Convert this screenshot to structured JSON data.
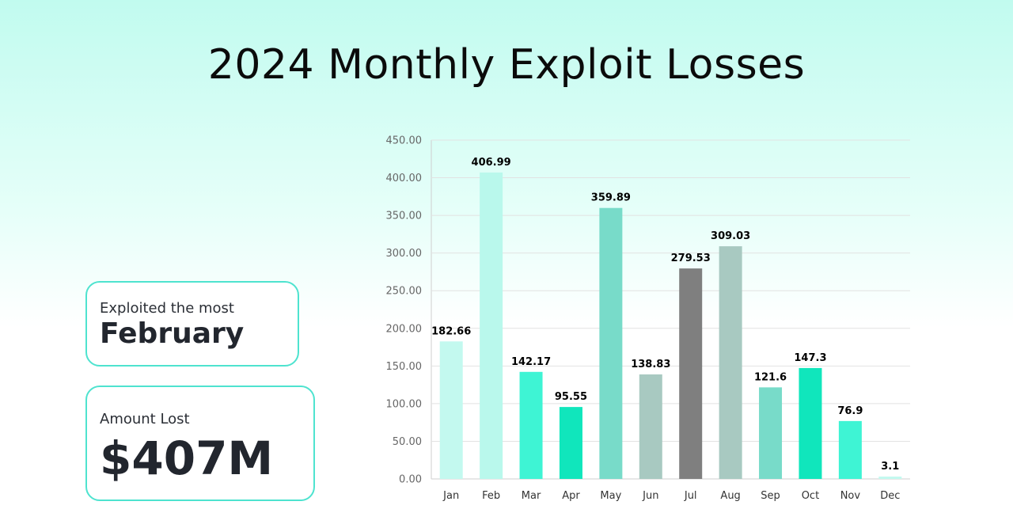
{
  "chart_data": {
    "type": "bar",
    "title": "2024 Monthly Exploit Losses",
    "xlabel": "",
    "ylabel": "",
    "ylim": [
      0,
      450
    ],
    "yticks": [
      "0.00",
      "50.00",
      "100.00",
      "150.00",
      "200.00",
      "250.00",
      "300.00",
      "350.00",
      "400.00",
      "450.00"
    ],
    "grid": true,
    "categories": [
      "Jan",
      "Feb",
      "Mar",
      "Apr",
      "May",
      "Jun",
      "Jul",
      "Aug",
      "Sep",
      "Oct",
      "Nov",
      "Dec"
    ],
    "values": [
      182.66,
      406.99,
      142.17,
      95.55,
      359.89,
      138.83,
      279.53,
      309.03,
      121.6,
      147.3,
      76.9,
      3.1
    ],
    "value_labels": [
      "182.66",
      "406.99",
      "142.17",
      "95.55",
      "359.89",
      "138.83",
      "279.53",
      "309.03",
      "121.6",
      "147.3",
      "76.9",
      "3.1"
    ],
    "colors": [
      "#c3f9ef",
      "#b9f8ec",
      "#3ef4d4",
      "#10e6bc",
      "#78dbc9",
      "#a8c9c1",
      "#7f7f7f",
      "#a8c9c1",
      "#78dbc9",
      "#10e6bc",
      "#3ef4d4",
      "#c3f9ef"
    ]
  },
  "cards": {
    "most": {
      "label": "Exploited the most",
      "value": "February"
    },
    "lost": {
      "label": "Amount Lost",
      "value": "$407M"
    }
  }
}
